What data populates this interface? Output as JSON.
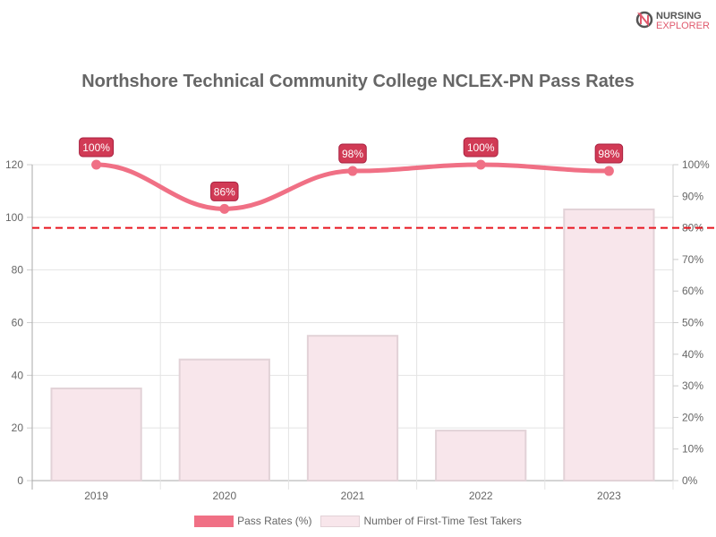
{
  "logo": {
    "line1": "NURSING",
    "line2": "EXPLORER"
  },
  "chart_data": {
    "type": "bar",
    "title": "Northshore Technical Community College NCLEX-PN Pass Rates",
    "categories": [
      "2019",
      "2020",
      "2021",
      "2022",
      "2023"
    ],
    "series": [
      {
        "name": "Pass Rates (%)",
        "type": "line",
        "axis": "right",
        "values": [
          100,
          86,
          98,
          100,
          98
        ],
        "labels": [
          "100%",
          "86%",
          "98%",
          "100%",
          "98%"
        ],
        "color": "#f07085"
      },
      {
        "name": "Number of First-Time Test Takers",
        "type": "bar",
        "axis": "left",
        "values": [
          35,
          46,
          55,
          19,
          103
        ],
        "color": "#f8e6eb",
        "border": "#e2d2d7"
      }
    ],
    "y_left": {
      "range": [
        0,
        120
      ],
      "ticks": [
        "0",
        "20",
        "40",
        "60",
        "80",
        "100",
        "120"
      ]
    },
    "y_right": {
      "range": [
        0,
        100
      ],
      "ticks": [
        "0%",
        "10%",
        "20%",
        "30%",
        "40%",
        "50%",
        "60%",
        "70%",
        "80%",
        "90%",
        "100%"
      ]
    },
    "reference_line": {
      "value": 80,
      "axis": "right",
      "color": "#e8141e",
      "style": "dashed"
    },
    "label_color": "#d13a55",
    "grid": true,
    "legend": "bottom"
  }
}
